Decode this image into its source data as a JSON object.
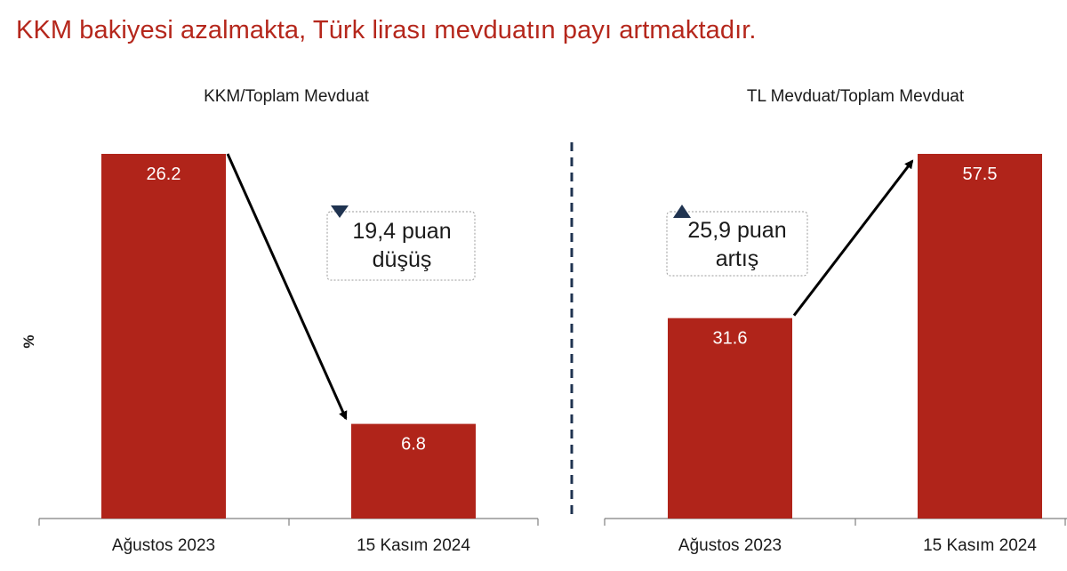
{
  "page": {
    "title": "KKM bakiyesi azalmakta, Türk lirası mevduatın payı artmaktadır."
  },
  "colors": {
    "title": "#b5271c",
    "bar": "#b0241a",
    "marker": "#1f3350",
    "divider": "#1f3350"
  },
  "chart_data": [
    {
      "type": "bar",
      "title": "KKM/Toplam Mevduat",
      "ylabel": "%",
      "categories": [
        "Ağustos 2023",
        "15 Kasım 2024"
      ],
      "values": [
        26.2,
        6.8
      ],
      "value_labels": [
        "26.2",
        "6.8"
      ],
      "ylim": [
        0,
        26.2
      ],
      "grid": false,
      "annotation": {
        "line1": "19,4 puan",
        "line2": "düşüş",
        "direction": "down"
      }
    },
    {
      "type": "bar",
      "title": "TL Mevduat/Toplam Mevduat",
      "ylabel": "",
      "categories": [
        "Ağustos 2023",
        "15 Kasım 2024"
      ],
      "values": [
        31.6,
        57.5
      ],
      "value_labels": [
        "31.6",
        "57.5"
      ],
      "ylim": [
        0,
        57.5
      ],
      "grid": false,
      "annotation": {
        "line1": "25,9 puan",
        "line2": "artış",
        "direction": "up"
      }
    }
  ]
}
